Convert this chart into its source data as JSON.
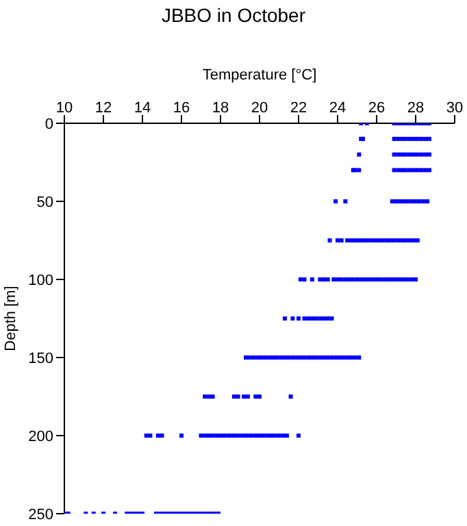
{
  "chart_data": {
    "type": "scatter",
    "title": "JBBO in October",
    "xlabel": "Temperature [°C]",
    "ylabel": "Depth [m]",
    "xlim": [
      10,
      30
    ],
    "xticks": [
      10,
      12,
      14,
      16,
      18,
      20,
      22,
      24,
      26,
      28,
      30
    ],
    "ylim": [
      250,
      0
    ],
    "yticks": [
      0,
      50,
      100,
      150,
      200,
      250
    ],
    "grid": false,
    "legend": false,
    "marker": "square",
    "series": [
      {
        "color": "#0000ff",
        "x": [
          25.2,
          25.5,
          26.9,
          27.1,
          27.3,
          27.5,
          27.7,
          27.9,
          28.1,
          28.3,
          28.5,
          28.7,
          25.2,
          25.3,
          26.9,
          27.1,
          27.3,
          27.5,
          27.7,
          27.9,
          28.1,
          28.3,
          28.5,
          28.7,
          25.1,
          26.9,
          27.1,
          27.3,
          27.5,
          27.7,
          27.9,
          28.1,
          28.3,
          28.5,
          28.7,
          24.8,
          24.9,
          25.1,
          26.9,
          27.1,
          27.3,
          27.5,
          27.7,
          27.9,
          28.1,
          28.3,
          28.5,
          28.7,
          23.9,
          24.4,
          26.8,
          27.0,
          27.2,
          27.4,
          27.6,
          27.8,
          28.0,
          28.2,
          28.4,
          28.6,
          23.6,
          24.0,
          24.2,
          24.5,
          24.7,
          24.9,
          25.1,
          25.3,
          25.5,
          25.7,
          25.9,
          26.1,
          26.3,
          26.5,
          26.7,
          26.9,
          27.1,
          27.3,
          27.5,
          27.7,
          27.9,
          28.1,
          22.1,
          22.3,
          22.7,
          23.1,
          23.3,
          23.5,
          23.8,
          24.0,
          24.2,
          24.4,
          24.6,
          24.8,
          25.0,
          25.2,
          25.4,
          25.6,
          25.8,
          26.0,
          26.2,
          26.4,
          26.6,
          26.8,
          27.0,
          27.2,
          27.4,
          27.6,
          27.8,
          28.0,
          21.3,
          21.7,
          22.0,
          22.3,
          22.5,
          22.7,
          22.9,
          23.1,
          23.3,
          23.5,
          23.7,
          19.3,
          19.5,
          19.7,
          19.9,
          20.1,
          20.3,
          20.5,
          20.7,
          20.9,
          21.1,
          21.3,
          21.5,
          21.7,
          21.9,
          22.1,
          22.3,
          22.5,
          22.7,
          22.9,
          23.1,
          23.3,
          23.5,
          23.7,
          23.9,
          24.1,
          24.3,
          24.5,
          24.7,
          24.9,
          25.1,
          17.2,
          17.4,
          17.6,
          18.7,
          18.9,
          19.2,
          19.4,
          19.8,
          20.0,
          21.6,
          14.2,
          14.4,
          14.8,
          15.0,
          16.0,
          17.0,
          17.2,
          17.4,
          17.6,
          17.8,
          18.0,
          18.2,
          18.4,
          18.6,
          18.8,
          19.0,
          19.2,
          19.4,
          19.6,
          19.8,
          20.0,
          20.2,
          20.4,
          20.6,
          20.8,
          21.0,
          21.2,
          21.4,
          22.0,
          10.0,
          10.2,
          11.1,
          11.5,
          12.0,
          12.6,
          13.2,
          13.4,
          13.6,
          13.8,
          14.0,
          14.7,
          14.9,
          15.1,
          15.3,
          15.5,
          15.7,
          15.9,
          16.1,
          16.3,
          16.5,
          16.7,
          16.9,
          17.1,
          17.3,
          17.5,
          17.7,
          17.9
        ],
        "values": [
          0,
          0,
          0,
          0,
          0,
          0,
          0,
          0,
          0,
          0,
          0,
          0,
          10,
          10,
          10,
          10,
          10,
          10,
          10,
          10,
          10,
          10,
          10,
          10,
          20,
          20,
          20,
          20,
          20,
          20,
          20,
          20,
          20,
          20,
          20,
          30,
          30,
          30,
          30,
          30,
          30,
          30,
          30,
          30,
          30,
          30,
          30,
          30,
          50,
          50,
          50,
          50,
          50,
          50,
          50,
          50,
          50,
          50,
          50,
          50,
          75,
          75,
          75,
          75,
          75,
          75,
          75,
          75,
          75,
          75,
          75,
          75,
          75,
          75,
          75,
          75,
          75,
          75,
          75,
          75,
          75,
          75,
          100,
          100,
          100,
          100,
          100,
          100,
          100,
          100,
          100,
          100,
          100,
          100,
          100,
          100,
          100,
          100,
          100,
          100,
          100,
          100,
          100,
          100,
          100,
          100,
          100,
          100,
          100,
          100,
          125,
          125,
          125,
          125,
          125,
          125,
          125,
          125,
          125,
          125,
          125,
          150,
          150,
          150,
          150,
          150,
          150,
          150,
          150,
          150,
          150,
          150,
          150,
          150,
          150,
          150,
          150,
          150,
          150,
          150,
          150,
          150,
          150,
          150,
          150,
          150,
          150,
          150,
          150,
          150,
          150,
          175,
          175,
          175,
          175,
          175,
          175,
          175,
          175,
          175,
          175,
          200,
          200,
          200,
          200,
          200,
          200,
          200,
          200,
          200,
          200,
          200,
          200,
          200,
          200,
          200,
          200,
          200,
          200,
          200,
          200,
          200,
          200,
          200,
          200,
          200,
          200,
          200,
          200,
          200,
          250,
          250,
          250,
          250,
          250,
          250,
          250,
          250,
          250,
          250,
          250,
          250,
          250,
          250,
          250,
          250,
          250,
          250,
          250,
          250,
          250,
          250,
          250,
          250,
          250,
          250,
          250,
          250
        ]
      }
    ]
  }
}
